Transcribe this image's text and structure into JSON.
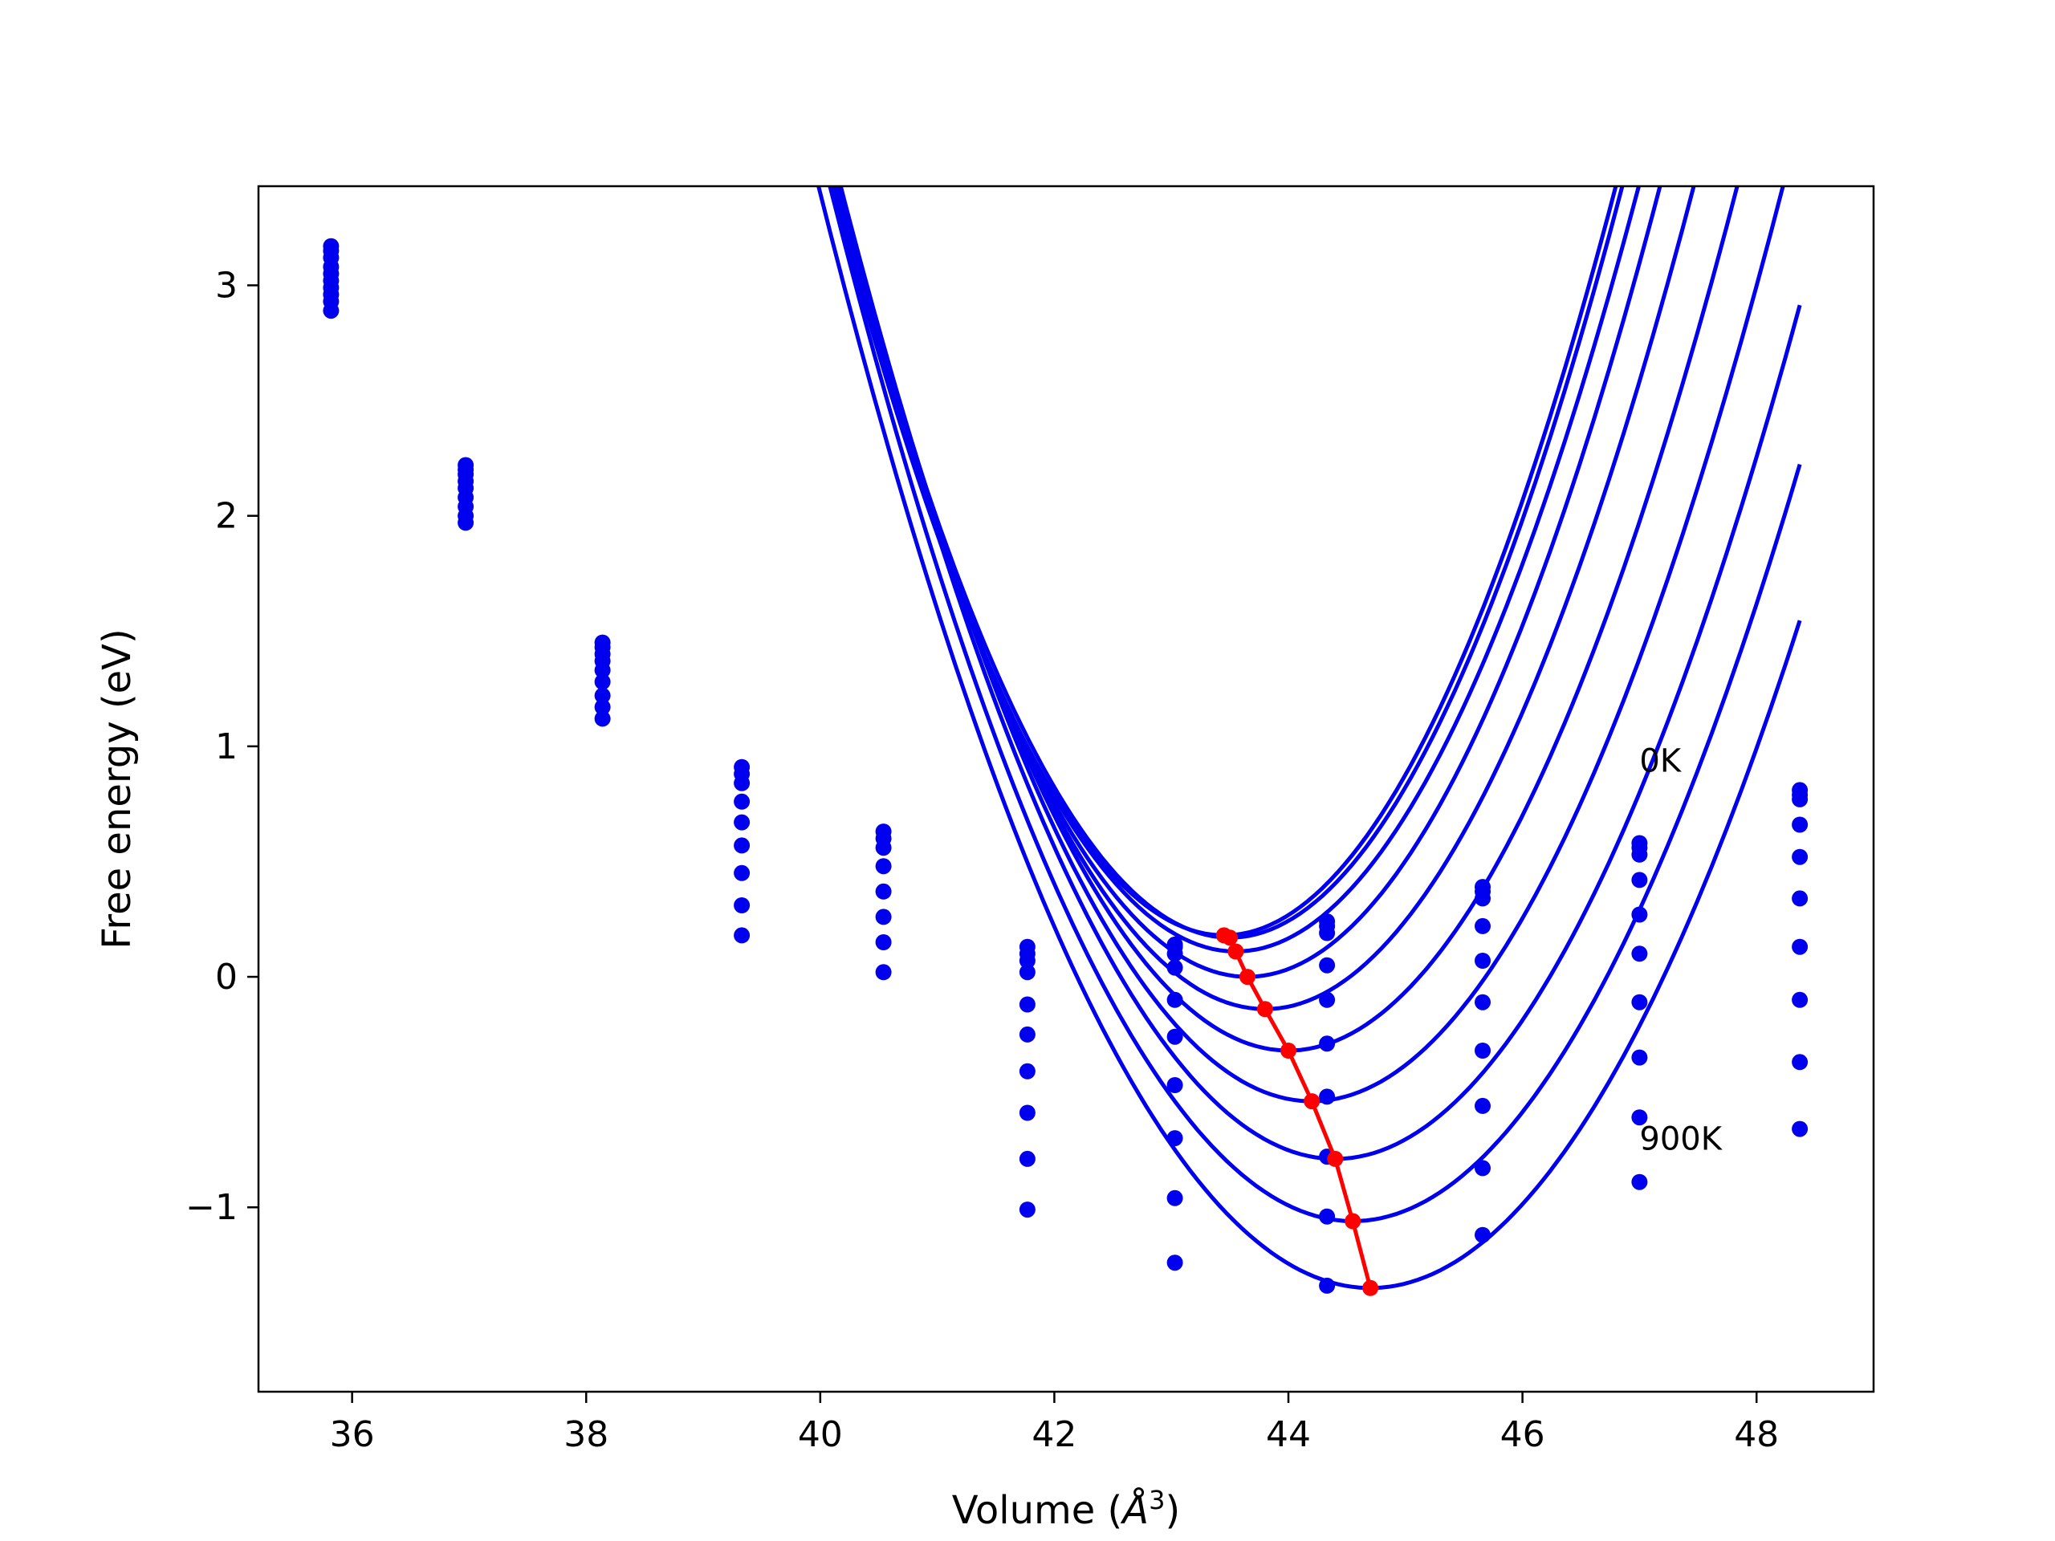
{
  "chart_data": {
    "type": "line",
    "title": "",
    "xlabel": "Volume (Å³)",
    "xlabel_parts": {
      "prefix": "Volume (",
      "unit": "Å",
      "exponent": "3",
      "suffix": ")"
    },
    "ylabel": "Free energy (eV)",
    "xlim": [
      35.2,
      49.0
    ],
    "ylim": [
      -1.8,
      3.43
    ],
    "x_ticks": [
      36,
      38,
      40,
      42,
      44,
      46,
      48
    ],
    "x_tick_labels": [
      "36",
      "38",
      "40",
      "42",
      "44",
      "46",
      "48"
    ],
    "y_ticks": [
      -1,
      0,
      1,
      2,
      3
    ],
    "y_tick_labels": [
      "−1",
      "0",
      "1",
      "2",
      "3"
    ],
    "grid": false,
    "legend": "none",
    "colors": {
      "fit_curves": "#0000ee",
      "data_points": "#0000ee",
      "minima_line": "#ff0000",
      "frame": "#000000"
    },
    "volumes": [
      35.82,
      36.97,
      38.14,
      39.33,
      40.54,
      41.77,
      43.03,
      44.33,
      45.66,
      47.0,
      48.37
    ],
    "series": [
      {
        "fit": {
          "v0": 43.45,
          "e0": 0.18,
          "k": 0.29
        },
        "values": [
          3.17,
          2.22,
          1.45,
          0.91,
          0.63,
          0.13,
          0.14,
          0.24,
          0.39,
          0.58,
          0.81
        ]
      },
      {
        "fit": {
          "v0": 43.5,
          "e0": 0.17,
          "k": 0.29
        },
        "values": [
          3.15,
          2.2,
          1.43,
          0.88,
          0.6,
          0.1,
          0.13,
          0.22,
          0.37,
          0.56,
          0.79
        ]
      },
      {
        "fit": {
          "v0": 43.55,
          "e0": 0.11,
          "k": 0.28
        },
        "values": [
          3.12,
          2.18,
          1.4,
          0.84,
          0.56,
          0.07,
          0.1,
          0.19,
          0.34,
          0.53,
          0.77
        ]
      },
      {
        "fit": {
          "v0": 43.65,
          "e0": 0.0,
          "k": 0.276
        },
        "values": [
          3.08,
          2.15,
          1.37,
          0.76,
          0.48,
          0.02,
          0.04,
          0.05,
          0.22,
          0.42,
          0.66
        ]
      },
      {
        "fit": {
          "v0": 43.8,
          "e0": -0.14,
          "k": 0.266
        },
        "values": [
          3.05,
          2.12,
          1.33,
          0.67,
          0.37,
          -0.12,
          -0.1,
          -0.1,
          0.07,
          0.27,
          0.52
        ]
      },
      {
        "fit": {
          "v0": 44.0,
          "e0": -0.32,
          "k": 0.255
        },
        "values": [
          3.02,
          2.08,
          1.28,
          0.57,
          0.26,
          -0.25,
          -0.26,
          -0.29,
          -0.11,
          0.1,
          0.34
        ]
      },
      {
        "fit": {
          "v0": 44.2,
          "e0": -0.54,
          "k": 0.245
        },
        "values": [
          2.99,
          2.04,
          1.22,
          0.45,
          0.15,
          -0.41,
          -0.47,
          -0.52,
          -0.32,
          -0.11,
          0.13
        ]
      },
      {
        "fit": {
          "v0": 44.4,
          "e0": -0.79,
          "k": 0.235
        },
        "values": [
          2.96,
          2.0,
          1.17,
          0.31,
          0.02,
          -0.59,
          -0.7,
          -0.78,
          -0.56,
          -0.35,
          -0.1
        ]
      },
      {
        "fit": {
          "v0": 44.55,
          "e0": -1.06,
          "k": 0.225
        },
        "values": [
          2.93,
          1.97,
          1.12,
          0.18,
          null,
          -0.79,
          -0.96,
          -1.04,
          -0.83,
          -0.61,
          -0.37
        ]
      },
      {
        "fit": {
          "v0": 44.7,
          "e0": -1.35,
          "k": 0.215
        },
        "values": [
          2.89,
          null,
          null,
          null,
          null,
          -1.01,
          -1.24,
          -1.34,
          -1.12,
          -0.89,
          -0.66
        ]
      }
    ],
    "minima": {
      "x": [
        43.45,
        43.5,
        43.55,
        43.65,
        43.8,
        44.0,
        44.2,
        44.4,
        44.55,
        44.7
      ],
      "y": [
        0.18,
        0.17,
        0.11,
        0.0,
        -0.14,
        -0.32,
        -0.54,
        -0.79,
        -1.06,
        -1.35
      ]
    },
    "annotations": [
      {
        "text": "0K",
        "x": 47.0,
        "y": 0.89
      },
      {
        "text": "900K",
        "x": 47.0,
        "y": -0.75
      }
    ]
  }
}
